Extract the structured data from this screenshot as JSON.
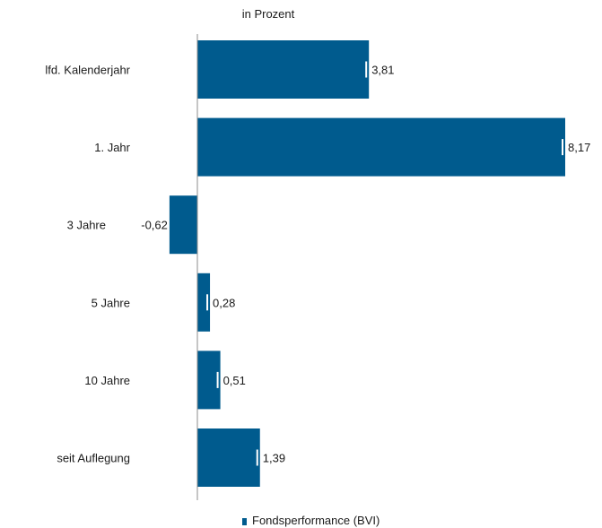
{
  "chart_data": {
    "type": "bar",
    "orientation": "horizontal",
    "subtitle": "in Prozent",
    "categories": [
      "lfd. Kalenderjahr",
      "1. Jahr",
      "3  Jahre",
      "5 Jahre",
      "10 Jahre",
      "seit Auflegung"
    ],
    "series": [
      {
        "name": "Fondsperformance (BVI)",
        "values": [
          3.81,
          8.17,
          -0.62,
          0.28,
          0.51,
          1.39
        ],
        "labels": [
          "3,81",
          "8,17",
          "-0,62",
          "0,28",
          "0,51",
          "1,39"
        ]
      }
    ],
    "xlim": [
      -0.62,
      8.17
    ],
    "grid": false,
    "legend_position": "bottom",
    "colors": {
      "bar": "#005B8E",
      "axis": "#8c8c8c"
    }
  }
}
